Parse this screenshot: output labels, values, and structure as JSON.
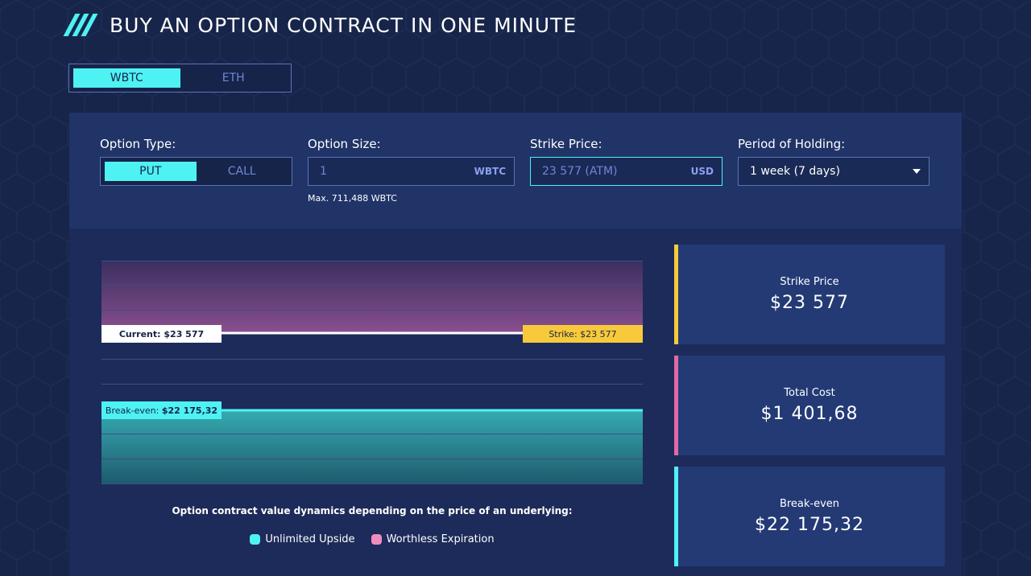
{
  "header": {
    "title": "BUY AN OPTION CONTRACT IN ONE MINUTE"
  },
  "asset_toggle": {
    "options": [
      "WBTC",
      "ETH"
    ],
    "selected": "WBTC"
  },
  "form": {
    "option_type": {
      "label": "Option Type:",
      "options": [
        "PUT",
        "CALL"
      ],
      "selected": "PUT"
    },
    "option_size": {
      "label": "Option Size:",
      "value": "1",
      "unit": "WBTC",
      "note": "Max. 711,488 WBTC"
    },
    "strike_price": {
      "label": "Strike Price:",
      "value": "23 577 (ATM)",
      "unit": "USD"
    },
    "period": {
      "label": "Period of Holding:",
      "value": "1 week (7 days)"
    }
  },
  "chart": {
    "current_label": "Current:",
    "current_value": "$23 577",
    "strike_label": "Strike:",
    "strike_value": "$23 577",
    "breakeven_label": "Break-even:",
    "breakeven_value": "$22 175,32",
    "caption": "Option contract value dynamics depending on the price of an underlying:",
    "legend": [
      {
        "label": "Unlimited Upside",
        "color": "#4ef2f2"
      },
      {
        "label": "Worthless Expiration",
        "color": "#f08cc0"
      }
    ]
  },
  "stats": [
    {
      "label": "Strike Price",
      "value": "$23 577",
      "accent": "#f8c93a"
    },
    {
      "label": "Total Cost",
      "value": "$1 401,68",
      "accent": "#e06aa8"
    },
    {
      "label": "Break-even",
      "value": "$22 175,32",
      "accent": "#4ef2f2"
    }
  ],
  "colors": {
    "accent": "#4ef2f2",
    "background": "#17254a"
  }
}
